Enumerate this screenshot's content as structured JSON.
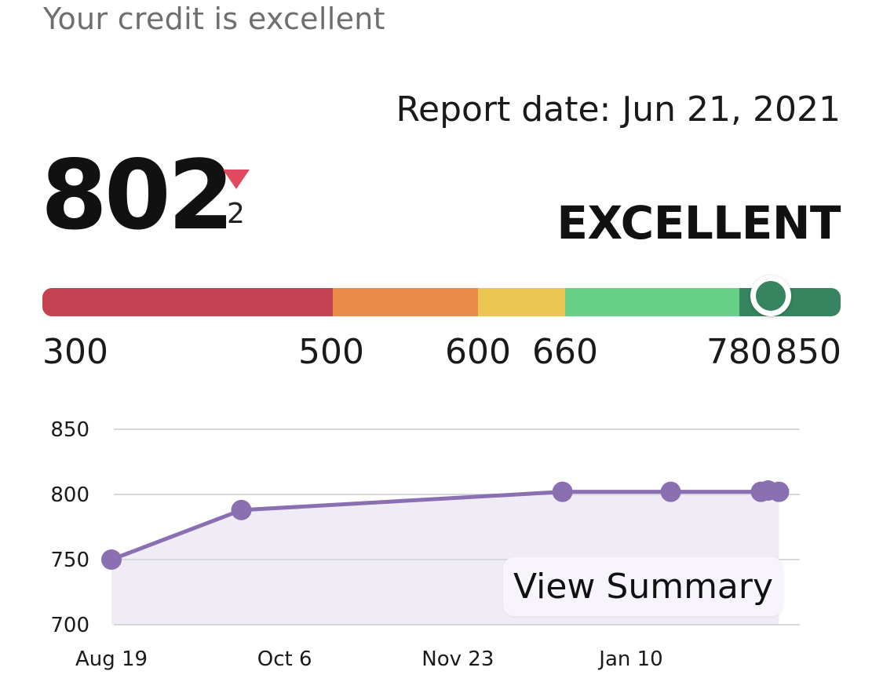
{
  "header": {
    "title": "Your credit is excellent"
  },
  "report": {
    "date_label": "Report date: Jun 21, 2021"
  },
  "score": {
    "value": "802",
    "change": "2",
    "change_direction": "down",
    "change_color": "#e0495f",
    "rating": "EXCELLENT"
  },
  "scale": {
    "min": 300,
    "max": 850,
    "current": 802,
    "marker_color": "#378560",
    "segments": [
      {
        "from": 300,
        "to": 500,
        "color": "#c44352"
      },
      {
        "from": 500,
        "to": 600,
        "color": "#e98a48"
      },
      {
        "from": 600,
        "to": 660,
        "color": "#ebc653"
      },
      {
        "from": 660,
        "to": 780,
        "color": "#67d088"
      },
      {
        "from": 780,
        "to": 850,
        "color": "#378560"
      }
    ],
    "ticks": [
      "300",
      "500",
      "600",
      "660",
      "780",
      "850"
    ]
  },
  "chart_data": {
    "type": "area",
    "ylim": [
      700,
      850
    ],
    "yticks": [
      "850",
      "800",
      "750",
      "700"
    ],
    "xticks": [
      "Aug 19",
      "Oct 6",
      "Nov 23",
      "Jan 10"
    ],
    "grid": true,
    "line_color": "#8a6fb2",
    "fill_color": "#f0ecf6",
    "series": [
      {
        "points": [
          {
            "x": "Aug 19",
            "y": 750
          },
          {
            "x": "Sep 24",
            "y": 788
          },
          {
            "x": "Dec 22",
            "y": 802
          },
          {
            "x": "Jan 21",
            "y": 802
          },
          {
            "x": "Feb 15",
            "y": 802
          },
          {
            "x": "Feb 17",
            "y": 803
          },
          {
            "x": "Feb 20",
            "y": 802
          }
        ]
      }
    ]
  },
  "actions": {
    "view_summary_label": "View Summary"
  }
}
